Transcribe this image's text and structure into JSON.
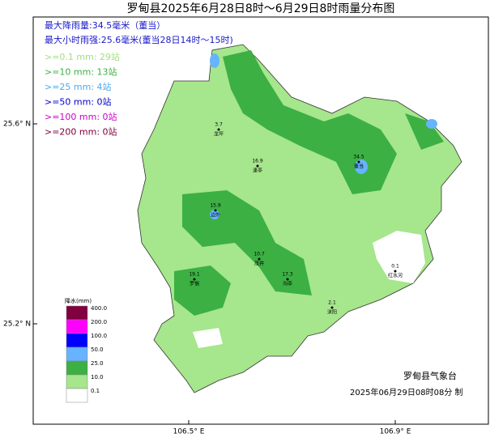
{
  "header": {
    "title": "罗甸县2025年6月28日8时～6月29日8时雨量分布图"
  },
  "summary": [
    "最大降雨量:34.5毫米（董当）",
    "最大小时雨强:25.6毫米(董当28日14时～15时)"
  ],
  "thresholds": [
    {
      "text": ">=0.1  mm:  29站",
      "color": "#9fe07f"
    },
    {
      "text": ">=10   mm:  13站",
      "color": "#3cb043"
    },
    {
      "text": ">=25   mm:   4站",
      "color": "#4aa8f0"
    },
    {
      "text": ">=50   mm:   0站",
      "color": "#0000cc"
    },
    {
      "text": ">=100  mm:   0站",
      "color": "#cc00cc"
    },
    {
      "text": ">=200  mm:   0站",
      "color": "#800040"
    }
  ],
  "axes": {
    "lat": [
      "25.6° N",
      "25.2° N"
    ],
    "lon": [
      "106.5° E",
      "106.9° E"
    ]
  },
  "legend": {
    "title": "降水(mm)",
    "items": [
      {
        "label": "400.0",
        "color": "#800040"
      },
      {
        "label": "200.0",
        "color": "#ff00ff"
      },
      {
        "label": "100.0",
        "color": "#0000ff"
      },
      {
        "label": "50.0",
        "color": "#66b3ff"
      },
      {
        "label": "25.0",
        "color": "#3cb043"
      },
      {
        "label": "10.0",
        "color": "#a6e68c"
      },
      {
        "label": "0.1",
        "color": "#ffffff"
      }
    ]
  },
  "stations": [
    {
      "name": "董当",
      "value": "34.5"
    },
    {
      "name": "逢亭",
      "value": "16.9"
    },
    {
      "name": "罗悃",
      "value": "19.1"
    },
    {
      "name": "边外",
      "value": "15.9"
    },
    {
      "name": "沟亭",
      "value": "17.3"
    },
    {
      "name": "茂井",
      "value": "10.7"
    },
    {
      "name": "龙坪",
      "value": "3.7"
    },
    {
      "name": "沫阳",
      "value": "2.1"
    },
    {
      "name": "红水河",
      "value": "0.1"
    }
  ],
  "footer": {
    "org": "罗甸县气象台",
    "time": "2025年06月29日08时08分 制"
  }
}
